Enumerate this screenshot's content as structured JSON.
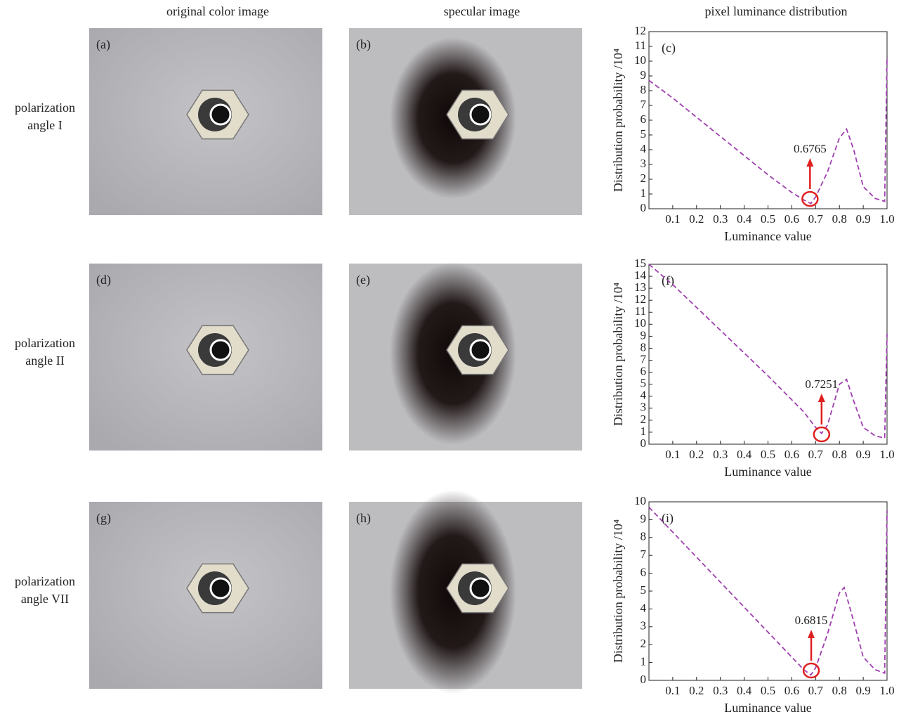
{
  "headers": [
    "original color image",
    "specular image",
    "pixel luminance distribution"
  ],
  "rows": [
    {
      "label": [
        "polarization",
        "angle I"
      ],
      "panels": [
        "(a)",
        "(b)"
      ]
    },
    {
      "label": [
        "polarization",
        "angle II"
      ],
      "panels": [
        "(d)",
        "(e)"
      ]
    },
    {
      "label": [
        "polarization",
        "angle VII"
      ],
      "panels": [
        "(g)",
        "(h)"
      ]
    }
  ],
  "chart_data": [
    {
      "type": "line",
      "panel": "(c)",
      "xlabel": "Luminance value",
      "ylabel": "Distribution probability /10⁴",
      "x": [
        0,
        0.1,
        0.2,
        0.3,
        0.4,
        0.5,
        0.6,
        0.65,
        0.68,
        0.7,
        0.75,
        0.8,
        0.83,
        0.86,
        0.9,
        0.95,
        0.99,
        1.0
      ],
      "values": [
        8.7,
        7.5,
        6.2,
        4.9,
        3.6,
        2.3,
        1.1,
        0.6,
        0.35,
        0.8,
        2.5,
        4.8,
        5.4,
        4.0,
        1.5,
        0.7,
        0.5,
        10.3
      ],
      "color": "#a040b0",
      "line_style": "dashed",
      "annotation": 0.6765,
      "xlim": [
        0,
        1
      ],
      "xticks": [
        0.1,
        0.2,
        0.3,
        0.4,
        0.5,
        0.6,
        0.7,
        0.8,
        0.9,
        {
          "value": 1,
          "label": "1.0"
        }
      ],
      "ylim": [
        0,
        12
      ],
      "yticks": [
        0,
        1,
        2,
        3,
        4,
        5,
        6,
        7,
        8,
        9,
        10,
        11,
        12
      ]
    },
    {
      "type": "line",
      "panel": "(f)",
      "xlabel": "Luminance value",
      "ylabel": "Distribution probability /10⁴",
      "x": [
        0,
        0.1,
        0.2,
        0.3,
        0.4,
        0.5,
        0.6,
        0.65,
        0.7,
        0.725,
        0.75,
        0.8,
        0.83,
        0.86,
        0.9,
        0.95,
        0.99,
        1.0
      ],
      "values": [
        15,
        13.3,
        11.4,
        9.5,
        7.6,
        5.7,
        3.7,
        2.7,
        1.4,
        0.9,
        1.6,
        5,
        5.4,
        3.6,
        1.4,
        0.7,
        0.5,
        9.2
      ],
      "color": "#a040b0",
      "line_style": "dashed",
      "annotation": 0.7251,
      "xlim": [
        0,
        1
      ],
      "xticks": [
        0.1,
        0.2,
        0.3,
        0.4,
        0.5,
        0.6,
        0.7,
        0.8,
        0.9,
        {
          "value": 1,
          "label": "1.0"
        }
      ],
      "ylim": [
        0,
        15
      ],
      "yticks": [
        0,
        1,
        2,
        3,
        4,
        5,
        6,
        7,
        8,
        9,
        10,
        11,
        12,
        13,
        14,
        15
      ]
    },
    {
      "type": "line",
      "panel": "(i)",
      "xlabel": "Luminance value",
      "ylabel": "Distribution probability /10⁴",
      "x": [
        0,
        0.1,
        0.2,
        0.3,
        0.4,
        0.5,
        0.6,
        0.65,
        0.68,
        0.7,
        0.75,
        0.8,
        0.82,
        0.86,
        0.9,
        0.95,
        0.99,
        1.0
      ],
      "values": [
        9.7,
        8.3,
        6.9,
        5.5,
        4.1,
        2.7,
        1.3,
        0.6,
        0.3,
        0.7,
        2.6,
        4.9,
        5.2,
        3.3,
        1.3,
        0.6,
        0.4,
        9.5
      ],
      "color": "#a040b0",
      "line_style": "dashed",
      "annotation": 0.6815,
      "xlim": [
        0,
        1
      ],
      "xticks": [
        0.1,
        0.2,
        0.3,
        0.4,
        0.5,
        0.6,
        0.7,
        0.8,
        0.9,
        {
          "value": 1,
          "label": "1.0"
        }
      ],
      "ylim": [
        0,
        10
      ],
      "yticks": [
        0,
        1,
        2,
        3,
        4,
        5,
        6,
        7,
        8,
        9,
        10
      ]
    }
  ]
}
